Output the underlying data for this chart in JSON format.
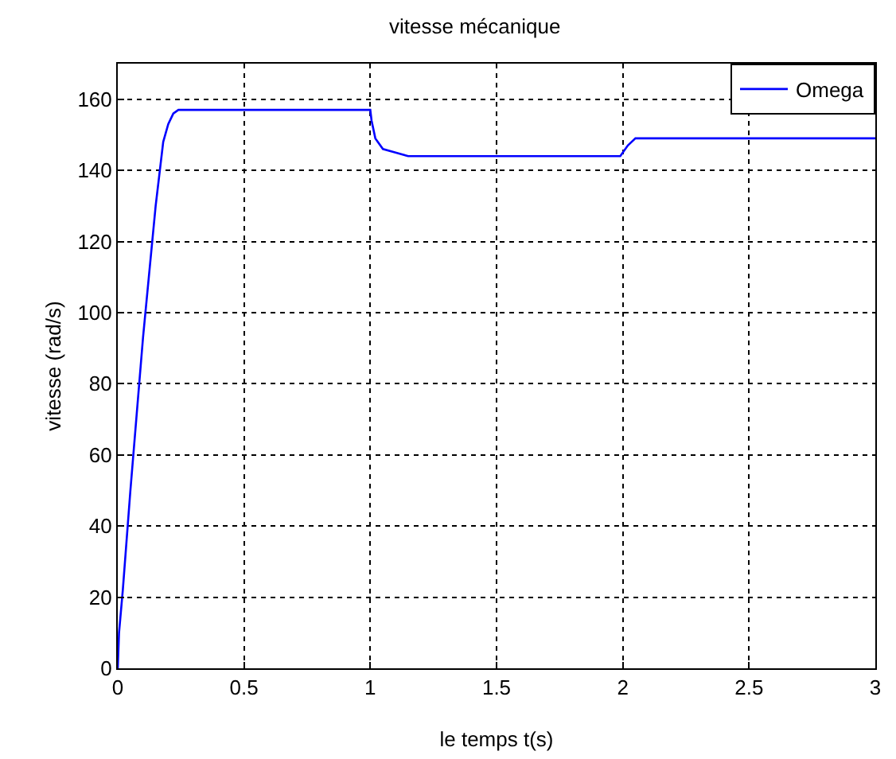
{
  "chart_data": {
    "type": "line",
    "title": "vitesse mécanique",
    "xlabel": "le temps t(s)",
    "ylabel": "vitesse (rad/s)",
    "series": [
      {
        "name": "Omega",
        "color": "#0000ff",
        "x": [
          0,
          0.005,
          0.02,
          0.05,
          0.1,
          0.15,
          0.18,
          0.2,
          0.22,
          0.24,
          0.26,
          0.3,
          1.0,
          1.005,
          1.02,
          1.05,
          1.1,
          1.15,
          1.3,
          1.99,
          2.0,
          2.02,
          2.05,
          2.1,
          3.0
        ],
        "values": [
          0,
          10,
          22,
          50,
          93,
          130,
          148,
          153,
          156,
          157,
          157,
          157,
          157,
          154,
          149,
          146,
          145,
          144,
          144,
          144,
          145,
          147,
          149,
          149,
          149
        ]
      }
    ],
    "xlim": [
      0,
      3
    ],
    "xticks": [
      0,
      0.5,
      1,
      1.5,
      2,
      2.5,
      3
    ],
    "ylim": [
      0,
      170
    ],
    "yticks": [
      0,
      20,
      40,
      60,
      80,
      100,
      120,
      140,
      160
    ],
    "grid": true,
    "legend": "top right",
    "line_style": "solid",
    "marker": "none"
  }
}
